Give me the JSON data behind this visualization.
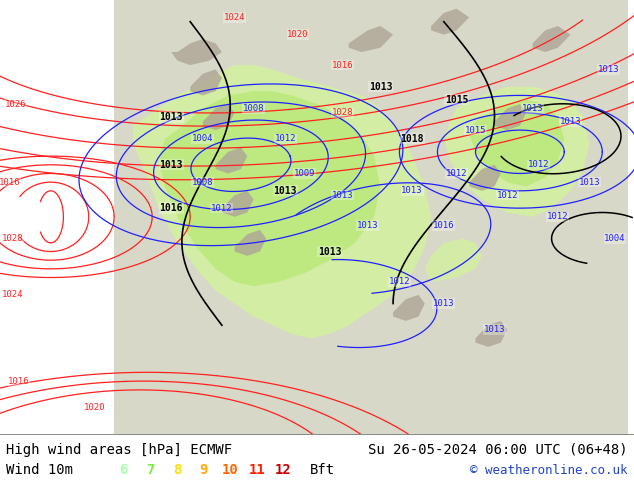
{
  "title_left": "High wind areas [hPa] ECMWF",
  "title_right": "Su 26-05-2024 06:00 UTC (06+48)",
  "subtitle_left": "Wind 10m",
  "subtitle_right": "© weatheronline.co.uk",
  "legend_numbers": [
    "6",
    "7",
    "8",
    "9",
    "10",
    "11",
    "12"
  ],
  "legend_colors": [
    "#aaffaa",
    "#77ee44",
    "#ffdd00",
    "#ffaa00",
    "#ff6600",
    "#ff2200",
    "#cc0000"
  ],
  "bg_color": "#ffffff",
  "map_bg": "#ffffff",
  "ocean_color": "#ffffff",
  "land_color": "#d8d8c8",
  "green1": "#d4f0a0",
  "green2": "#b8e878",
  "green3": "#a0d860",
  "gray_terrain": "#b0a898",
  "title_fontsize": 10,
  "legend_fontsize": 10,
  "separator_color": "#888888",
  "red_isobar": "#ff2020",
  "blue_isobar": "#2020ff",
  "black_isobar": "#000000"
}
